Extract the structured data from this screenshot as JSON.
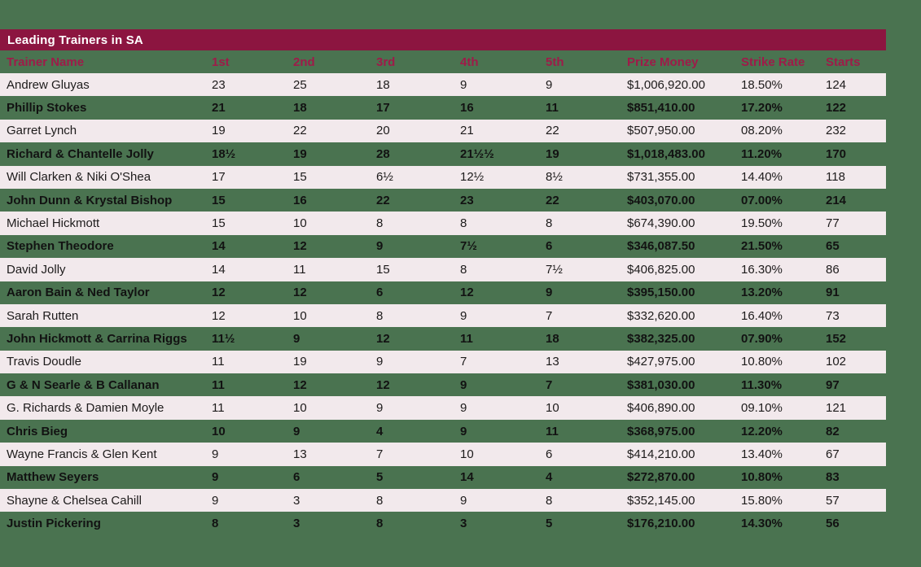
{
  "title": "Leading Trainers in SA",
  "colors": {
    "green-bg": "#4a7350",
    "maroon-bar": "#8c1540",
    "maroon-text": "#9e1b49",
    "pink-row": "#f2e9ec",
    "dark-text": "#1d1b1b",
    "white": "#ffffff"
  },
  "chart_data": {
    "type": "table",
    "title": "Leading Trainers in SA",
    "columns": [
      "Trainer Name",
      "1st",
      "2nd",
      "3rd",
      "4th",
      "5th",
      "Prize Money",
      "Strike Rate",
      "Starts"
    ],
    "rows": [
      [
        "Andrew Gluyas",
        "23",
        "25",
        "18",
        "9",
        "9",
        "$1,006,920.00",
        "18.50%",
        "124"
      ],
      [
        "Phillip Stokes",
        "21",
        "18",
        "17",
        "16",
        "11",
        "$851,410.00",
        "17.20%",
        "122"
      ],
      [
        "Garret Lynch",
        "19",
        "22",
        "20",
        "21",
        "22",
        "$507,950.00",
        "08.20%",
        "232"
      ],
      [
        "Richard & Chantelle Jolly",
        "18½",
        "19",
        "28",
        "21½½",
        "19",
        "$1,018,483.00",
        "11.20%",
        "170"
      ],
      [
        "Will Clarken & Niki O'Shea",
        "17",
        "15",
        "6½",
        "12½",
        "8½",
        "$731,355.00",
        "14.40%",
        "118"
      ],
      [
        "John Dunn & Krystal Bishop",
        "15",
        "16",
        "22",
        "23",
        "22",
        "$403,070.00",
        "07.00%",
        "214"
      ],
      [
        "Michael Hickmott",
        "15",
        "10",
        "8",
        "8",
        "8",
        "$674,390.00",
        "19.50%",
        "77"
      ],
      [
        "Stephen Theodore",
        "14",
        "12",
        "9",
        "7½",
        "6",
        "$346,087.50",
        "21.50%",
        "65"
      ],
      [
        "David Jolly",
        "14",
        "11",
        "15",
        "8",
        "7½",
        "$406,825.00",
        "16.30%",
        "86"
      ],
      [
        "Aaron Bain & Ned Taylor",
        "12",
        "12",
        "6",
        "12",
        "9",
        "$395,150.00",
        "13.20%",
        "91"
      ],
      [
        "Sarah Rutten",
        "12",
        "10",
        "8",
        "9",
        "7",
        "$332,620.00",
        "16.40%",
        "73"
      ],
      [
        "John Hickmott & Carrina Riggs",
        "11½",
        "9",
        "12",
        "11",
        "18",
        "$382,325.00",
        "07.90%",
        "152"
      ],
      [
        "Travis Doudle",
        "11",
        "19",
        "9",
        "7",
        "13",
        "$427,975.00",
        "10.80%",
        "102"
      ],
      [
        "G & N Searle & B Callanan",
        "11",
        "12",
        "12",
        "9",
        "7",
        "$381,030.00",
        "11.30%",
        "97"
      ],
      [
        "G. Richards & Damien Moyle",
        "11",
        "10",
        "9",
        "9",
        "10",
        "$406,890.00",
        "09.10%",
        "121"
      ],
      [
        "Chris Bieg",
        "10",
        "9",
        "4",
        "9",
        "11",
        "$368,975.00",
        "12.20%",
        "82"
      ],
      [
        "Wayne Francis & Glen Kent",
        "9",
        "13",
        "7",
        "10",
        "6",
        "$414,210.00",
        "13.40%",
        "67"
      ],
      [
        "Matthew Seyers",
        "9",
        "6",
        "5",
        "14",
        "4",
        "$272,870.00",
        "10.80%",
        "83"
      ],
      [
        "Shayne & Chelsea Cahill",
        "9",
        "3",
        "8",
        "9",
        "8",
        "$352,145.00",
        "15.80%",
        "57"
      ],
      [
        "Justin Pickering",
        "8",
        "3",
        "8",
        "3",
        "5",
        "$176,210.00",
        "14.30%",
        "56"
      ]
    ]
  }
}
